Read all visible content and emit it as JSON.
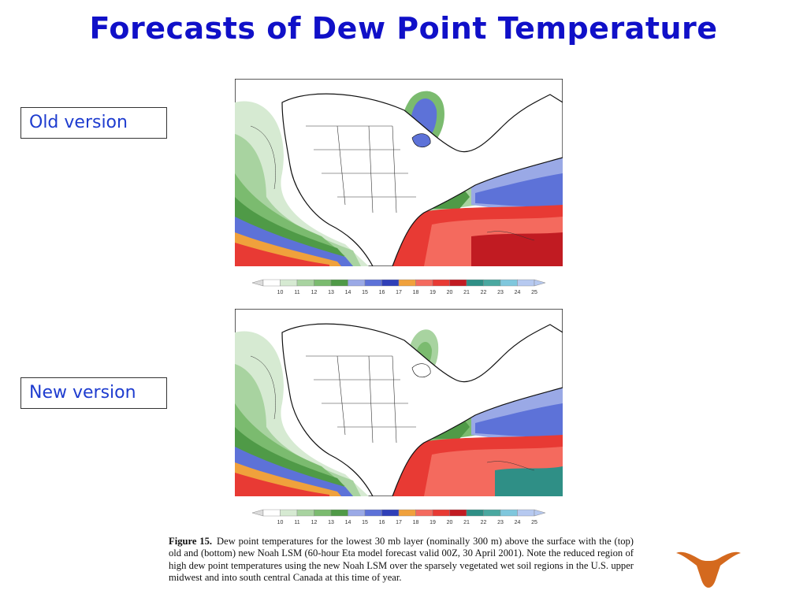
{
  "slide": {
    "title": "Forecasts of Dew Point Temperature",
    "labels": {
      "old": "Old version",
      "new": "New version"
    }
  },
  "colorbar": {
    "ticks": [
      "10",
      "11",
      "12",
      "13",
      "14",
      "15",
      "16",
      "17",
      "18",
      "19",
      "20",
      "21",
      "22",
      "23",
      "24",
      "25"
    ],
    "colors": [
      "#ffffff",
      "#d6ead2",
      "#a8d3a0",
      "#7bbb6f",
      "#4f9a47",
      "#9aa9e6",
      "#5d72d8",
      "#2f3fb8",
      "#f0a13c",
      "#f46a5e",
      "#e83a34",
      "#c11b22",
      "#2f8f86",
      "#4aa8a0",
      "#7fc7dd",
      "#b6c9f0"
    ]
  },
  "maps": [
    {
      "name": "old",
      "palette": {
        "land": "#ffffff",
        "border": "#111111"
      }
    },
    {
      "name": "new",
      "palette": {
        "land": "#ffffff",
        "border": "#111111"
      }
    }
  ],
  "caption": {
    "figure_label": "Figure 15.",
    "text": "Dew point temperatures for the lowest 30 mb layer (nominally 300 m) above the surface with the (top) old and (bottom) new Noah LSM (60-hour Eta model forecast valid 00Z, 30 April 2001). Note the reduced region of high dew point temperatures using the new Noah LSM over the sparsely vegetated wet soil regions in the U.S. upper midwest and into south central Canada at this time of year."
  },
  "logo": {
    "icon": "longhorn-icon",
    "color": "#d4691e"
  }
}
